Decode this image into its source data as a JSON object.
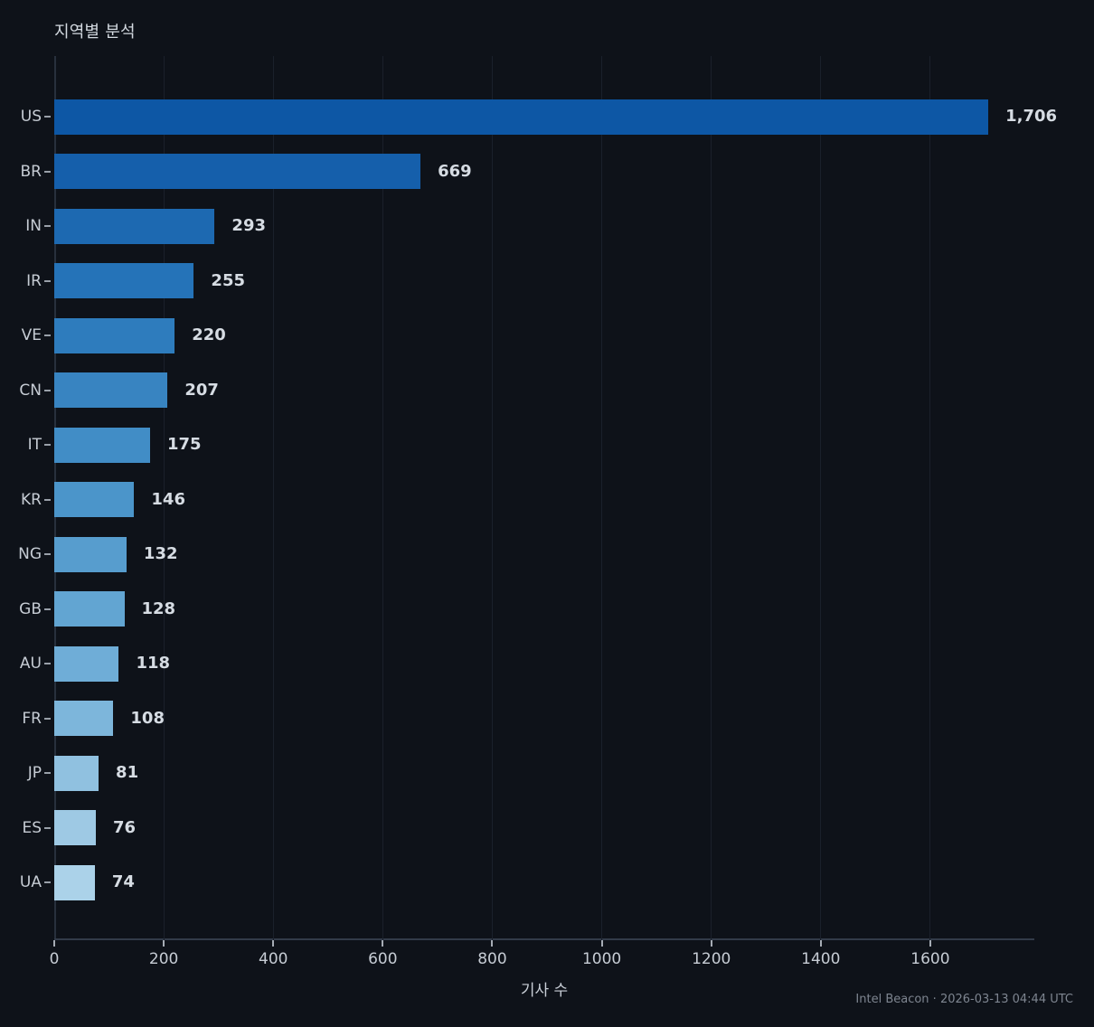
{
  "title": "지역별 분석",
  "footer_credit": "Intel Beacon · 2026-03-13 04:44 UTC",
  "colors": {
    "background": "#0e1219",
    "text_primary": "#c6ccd4",
    "text_value": "#d6dce3",
    "text_muted": "#7e8590",
    "spine": "#2c3442",
    "grid": "#1a202b",
    "tick": "#9aa0a9"
  },
  "chart_data": {
    "type": "bar",
    "orientation": "horizontal",
    "title": "지역별 분석",
    "xlabel": "기사 수",
    "ylabel": "",
    "categories": [
      "US",
      "BR",
      "IN",
      "IR",
      "VE",
      "CN",
      "IT",
      "KR",
      "NG",
      "GB",
      "AU",
      "FR",
      "JP",
      "ES",
      "UA"
    ],
    "values": [
      1706,
      669,
      293,
      255,
      220,
      207,
      175,
      146,
      132,
      128,
      118,
      108,
      81,
      76,
      74
    ],
    "value_labels": [
      "1,706",
      "669",
      "293",
      "255",
      "220",
      "207",
      "175",
      "146",
      "132",
      "128",
      "118",
      "108",
      "81",
      "76",
      "74"
    ],
    "bar_colors": [
      "#0d57a5",
      "#155fab",
      "#1d69b1",
      "#2573b8",
      "#2e7cbd",
      "#3884c1",
      "#418dc6",
      "#4b95ca",
      "#579dce",
      "#62a5d2",
      "#6fadd7",
      "#7db6db",
      "#90c1e0",
      "#9ec9e4",
      "#abd2e9"
    ],
    "xlim": [
      0,
      1790
    ],
    "xticks": [
      0,
      200,
      400,
      600,
      800,
      1000,
      1200,
      1400,
      1600
    ],
    "grid": "vertical-only",
    "legend": "none"
  }
}
